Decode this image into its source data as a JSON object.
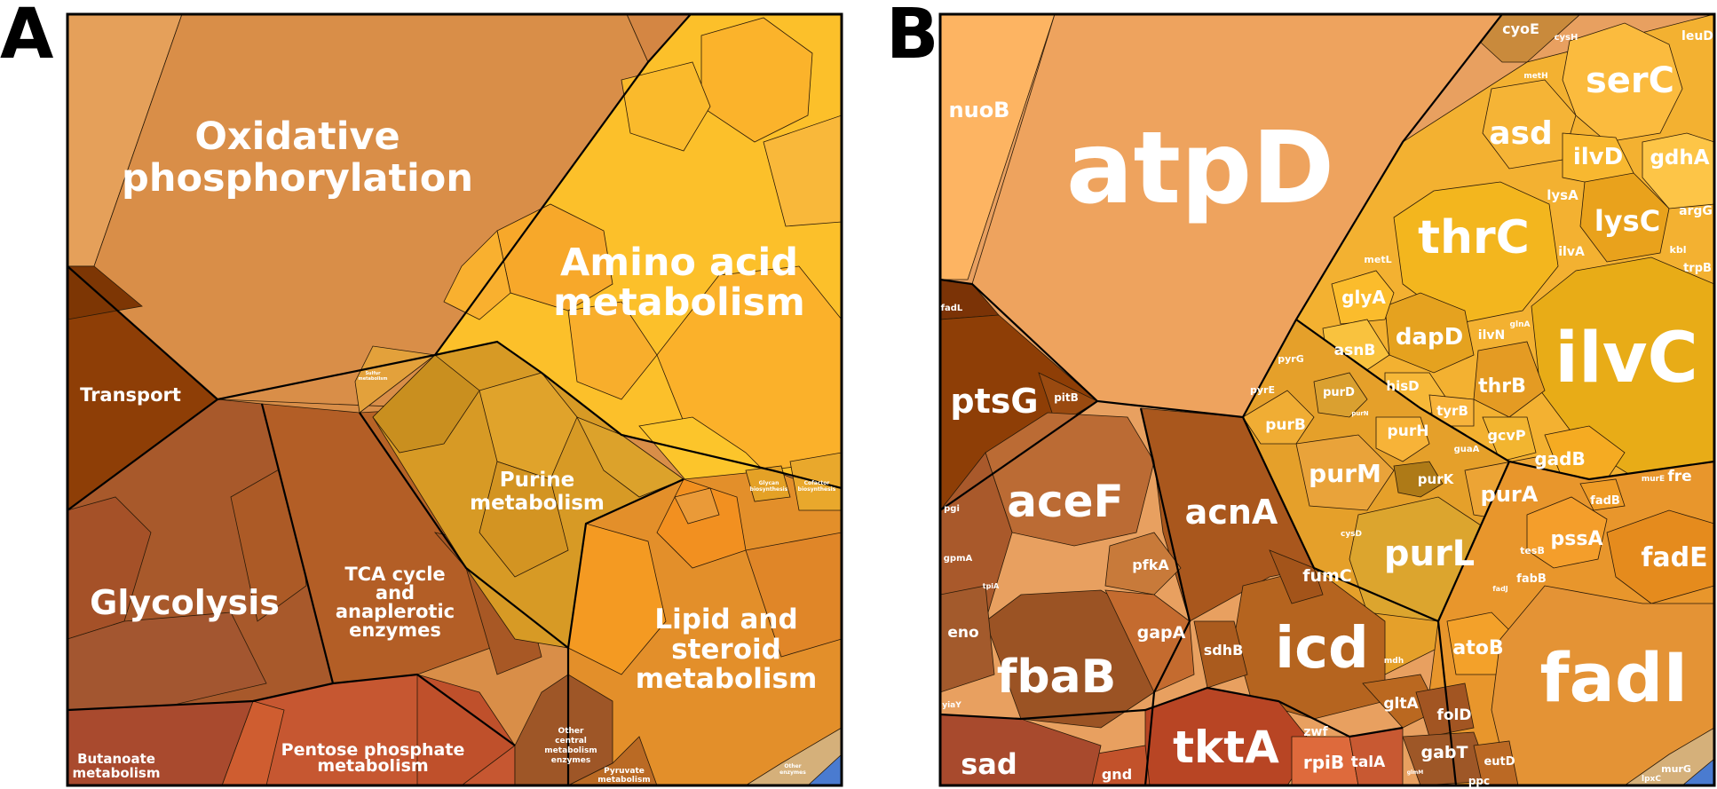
{
  "panels": [
    {
      "letter": "A"
    },
    {
      "letter": "B"
    }
  ],
  "panel_a": {
    "labels": {
      "oxphos": [
        "Oxidative",
        "phosphorylation"
      ],
      "amino": [
        "Amino acid",
        "metabolism"
      ],
      "transport": "Transport",
      "purine": [
        "Purine",
        "metabolism"
      ],
      "glycolysis": "Glycolysis",
      "tca": [
        "TCA cycle",
        "and",
        "anaplerotic",
        "enzymes"
      ],
      "lipid": [
        "Lipid and",
        "steroid",
        "metabolism"
      ],
      "pentose": [
        "Pentose phosphate",
        "metabolism"
      ],
      "butanoate": [
        "Butanoate",
        "metabolism"
      ],
      "other_central": [
        "Other",
        "central",
        "metabolism",
        "enzymes"
      ],
      "pyruvate": [
        "Pyruvate",
        "metabolism"
      ],
      "glycan": [
        "Glycan",
        "biosynthesis"
      ],
      "cofactor": [
        "Cofactor",
        "biosynthesis"
      ],
      "other_enzymes": [
        "Other",
        "enzymes"
      ],
      "misc_small": [
        "Sulfur",
        "metabolism"
      ]
    },
    "colors": {
      "oxphos": "#d98e48",
      "oxphos_light": "#e5a05a",
      "amino": "#fbb829",
      "transport": "#8e3e06",
      "purine": "#d79a25",
      "glycolysis": "#a8592b",
      "tca": "#b35e26",
      "lipid": "#e38f2a",
      "pentose": "#c65731",
      "butanoate": "#a94a2e"
    }
  },
  "panel_b": {
    "genes": {
      "atpD": "atpD",
      "nuoB": "nuoB",
      "cyoE": "cyoE",
      "cysH": "cysH",
      "leuD": "leuD",
      "serC": "serC",
      "metH": "metH",
      "asd": "asd",
      "ilvD": "ilvD",
      "gdhA": "gdhA",
      "lysA": "lysA",
      "lysC": "lysC",
      "argG": "argG",
      "thrC": "thrC",
      "metL": "metL",
      "ilvA": "ilvA",
      "kbl": "kbl",
      "trpB": "trpB",
      "glyA": "glyA",
      "dapD": "dapD",
      "ilvC": "ilvC",
      "asnB": "asnB",
      "ilvN": "ilvN",
      "glnA": "glnA",
      "pyrG": "pyrG",
      "hisD": "hisD",
      "thrB": "thrB",
      "pyrE": "pyrE",
      "purD": "purD",
      "purN": "purN",
      "tyrB": "tyrB",
      "ptsG": "ptsG",
      "pitB": "pitB",
      "fadL": "fadL",
      "purB": "purB",
      "purH": "purH",
      "gcvP": "gcvP",
      "guaA": "guaA",
      "gadB": "gadB",
      "purM": "purM",
      "purK": "purK",
      "purA": "purA",
      "fre": "fre",
      "murE": "murE",
      "aceF": "aceF",
      "acnA": "acnA",
      "fadB": "fadB",
      "purL": "purL",
      "pssA": "pssA",
      "fadE": "fadE",
      "cysD": "cysD",
      "tesB": "tesB",
      "fabB": "fabB",
      "pfkA": "pfkA",
      "fumC": "fumC",
      "pgi": "pgi",
      "gpmA": "gpmA",
      "tpiA": "tpiA",
      "eno": "eno",
      "gapA": "gapA",
      "fadJ": "fadJ",
      "atoB": "atoB",
      "fbaB": "fbaB",
      "icd": "icd",
      "sdhB": "sdhB",
      "fadI": "fadI",
      "mdh": "mdh",
      "gltA": "gltA",
      "yiaY": "yiaY",
      "folD": "folD",
      "zwf": "zwf",
      "sad": "sad",
      "tktA": "tktA",
      "gabT": "gabT",
      "rpiB": "rpiB",
      "talA": "talA",
      "eutD": "eutD",
      "gnd": "gnd",
      "glmM": "glmM",
      "ppc": "ppc",
      "murG": "murG",
      "lpxC": "lpxC"
    }
  }
}
